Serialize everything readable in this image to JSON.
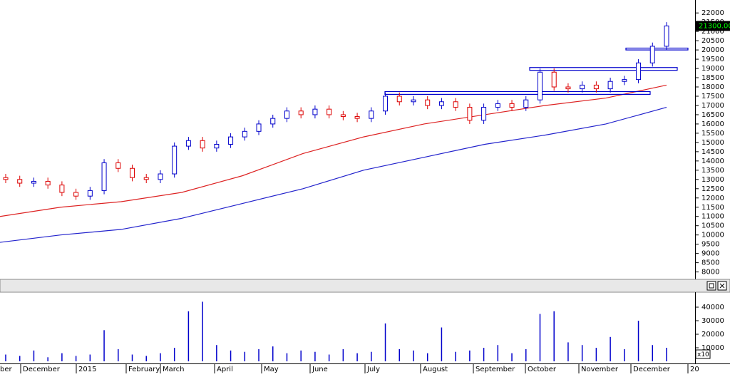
{
  "chart_data": {
    "type": "candlestick",
    "open": [
      13100,
      13000,
      12800,
      12900,
      12700,
      12300,
      12100,
      12400,
      13900,
      13600,
      13100,
      13000,
      13300,
      14800,
      15100,
      14700,
      14900,
      15300,
      15600,
      16000,
      16300,
      16700,
      16500,
      16800,
      16500,
      16400,
      16300,
      16700,
      17500,
      17200,
      17300,
      17000,
      17200,
      16900,
      16200,
      16900,
      17100,
      16900,
      17300,
      18800,
      18000,
      17900,
      18100,
      17900,
      18300,
      18400,
      19300,
      20200
    ],
    "high": [
      13300,
      13200,
      13100,
      13100,
      12900,
      12500,
      12600,
      14100,
      14100,
      13800,
      13300,
      13500,
      15000,
      15300,
      15300,
      15100,
      15500,
      15800,
      16200,
      16500,
      16900,
      16900,
      17000,
      17000,
      16700,
      16600,
      16900,
      17700,
      17700,
      17500,
      17500,
      17400,
      17400,
      17100,
      17100,
      17300,
      17300,
      17500,
      19000,
      19000,
      18200,
      18300,
      18300,
      18500,
      18600,
      19500,
      20400,
      21500
    ],
    "low": [
      12800,
      12600,
      12600,
      12500,
      12100,
      11900,
      11900,
      12200,
      13400,
      12900,
      12800,
      12800,
      13100,
      14600,
      14500,
      14500,
      14700,
      15100,
      15400,
      15800,
      16100,
      16300,
      16300,
      16300,
      16200,
      16100,
      16100,
      16500,
      17000,
      17000,
      16800,
      16800,
      16700,
      16000,
      16000,
      16700,
      16700,
      16700,
      17100,
      17800,
      17700,
      17700,
      17700,
      17700,
      18100,
      18200,
      19100,
      20000
    ],
    "close": [
      13000,
      12800,
      12900,
      12700,
      12300,
      12100,
      12400,
      13900,
      13600,
      13100,
      13000,
      13300,
      14800,
      15100,
      14700,
      14900,
      15300,
      15600,
      16000,
      16300,
      16700,
      16500,
      16800,
      16500,
      16400,
      16300,
      16700,
      17500,
      17200,
      17300,
      17000,
      17200,
      16900,
      16200,
      16900,
      17100,
      16900,
      17300,
      18800,
      18000,
      17900,
      18100,
      17900,
      18300,
      18400,
      19300,
      20200,
      21300
    ],
    "up_color": "#0000cc",
    "down_color": "#dd0000",
    "moving_averages": [
      {
        "color": "#dd2222",
        "values": [
          11000,
          11500,
          11800,
          12300,
          13200,
          14400,
          15300,
          16000,
          16500,
          17000,
          17400,
          18100
        ]
      },
      {
        "color": "#2222cc",
        "values": [
          9600,
          10000,
          10300,
          10900,
          11700,
          12500,
          13500,
          14200,
          14900,
          15400,
          16000,
          16900
        ]
      }
    ],
    "boxes": [
      {
        "low": 17600,
        "high": 17750
      },
      {
        "low": 18900,
        "high": 19050
      },
      {
        "low": 20000,
        "high": 20100
      }
    ],
    "box_color": "#0000cc",
    "last_price_label": "21300.00",
    "ylim": [
      7600,
      22700
    ],
    "yticks": [
      8000,
      8500,
      9000,
      9500,
      10000,
      10500,
      11000,
      11500,
      12000,
      12500,
      13000,
      13500,
      14000,
      14500,
      15000,
      15500,
      16000,
      16500,
      17000,
      17500,
      18000,
      18500,
      19000,
      19500,
      20000,
      20500,
      21000,
      21500,
      22000
    ],
    "volume": {
      "color": "#0000cc",
      "values": [
        5000,
        4000,
        8000,
        3000,
        6000,
        4000,
        5000,
        23000,
        9000,
        5000,
        4000,
        6000,
        10000,
        37000,
        44000,
        12000,
        8000,
        7000,
        9000,
        11000,
        6000,
        8000,
        7000,
        5000,
        9000,
        6000,
        7000,
        28000,
        9000,
        8000,
        6000,
        25000,
        7000,
        8000,
        10000,
        12000,
        6000,
        9000,
        35000,
        37000,
        14000,
        12000,
        10000,
        18000,
        9000,
        30000,
        12000,
        10000
      ],
      "ylim": [
        0,
        50000
      ],
      "yticks": [
        10000,
        20000,
        30000,
        40000
      ],
      "multiplier_label": "x10"
    },
    "x_labels": [
      "ber",
      "December",
      "2015",
      "February",
      "March",
      "April",
      "May",
      "June",
      "July",
      "August",
      "September",
      "October",
      "November",
      "December",
      "20"
    ]
  }
}
